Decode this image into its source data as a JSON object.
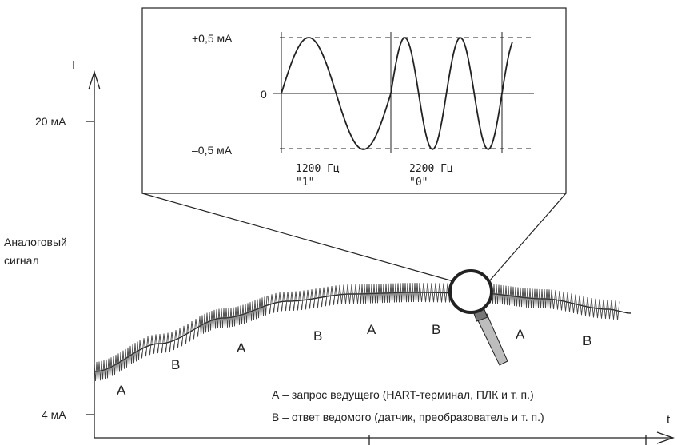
{
  "axes": {
    "y_label": "I",
    "x_label": "t",
    "tick_20ma": "20 мА",
    "tick_4ma": "4 мА"
  },
  "analog_signal_label": [
    "Аналоговый",
    "сигнал"
  ],
  "inset": {
    "plus_label": "+0,5 мА",
    "zero_label": "0",
    "minus_label": "–0,5 мА",
    "freq_1": "1200 Гц",
    "bit_1": "\"1\"",
    "freq_2": "2200 Гц",
    "bit_0": "\"0\""
  },
  "segments": [
    "A",
    "B",
    "A",
    "B",
    "A",
    "B",
    "A",
    "B"
  ],
  "legend": {
    "a": "А – запрос ведущего (HART-терминал, ПЛК и т. п.)",
    "b": "В – ответ ведомого (датчик, преобразователь и т. п.)"
  },
  "colors": {
    "ink": "#222222",
    "lens_fill": "#ffffff",
    "handle": "#bdbdbd"
  }
}
